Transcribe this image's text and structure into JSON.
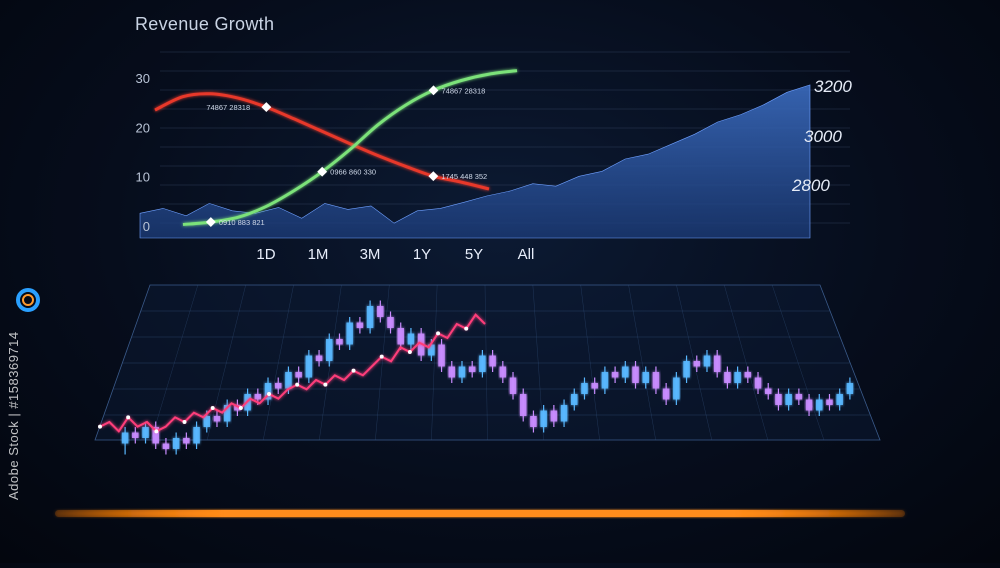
{
  "title": "Revenue Growth",
  "range_buttons": [
    "1D",
    "1M",
    "3M",
    "1Y",
    "5Y",
    "All"
  ],
  "watermark": "Adobe Stock | #158369714",
  "colors": {
    "green_line": "#7be27a",
    "red_line": "#e8392a",
    "area_fill": "#2d5aa6",
    "candle_up": "#59b8ff",
    "candle_down": "#c98cff",
    "pink_line": "#ff3e7a",
    "orange_bar": "#ff8c1a"
  },
  "chart_data": [
    {
      "type": "line",
      "title": "Revenue Growth",
      "ylim": [
        0,
        30
      ],
      "yticks": [
        0,
        10,
        20,
        30
      ],
      "right_ticks": [
        2800,
        3000,
        3200
      ],
      "series": [
        {
          "color": "green",
          "x": [
            0,
            1,
            2,
            3,
            4,
            5,
            6,
            7,
            8,
            9,
            10,
            11,
            12
          ],
          "values": [
            0.3,
            0.8,
            1.8,
            4.0,
            7.2,
            11.0,
            15.5,
            20.5,
            24.5,
            27.5,
            29.5,
            30.8,
            31.5
          ]
        },
        {
          "color": "red",
          "x": [
            0,
            1,
            2,
            3,
            4,
            5,
            6,
            7,
            8,
            9,
            10,
            11,
            12
          ],
          "values": [
            23.5,
            26.2,
            26.8,
            25.9,
            24.1,
            21.7,
            19.2,
            16.7,
            14.3,
            12.1,
            10.1,
            8.9,
            7.5
          ]
        }
      ],
      "annotations": [
        {
          "text": "0910 883 821",
          "series": "green",
          "x": 1
        },
        {
          "text": "0966 860 330",
          "series": "green",
          "x": 5
        },
        {
          "text": "74867 28318",
          "series": "green",
          "x": 9
        },
        {
          "text": "74867 28318",
          "series": "red",
          "x": 4
        },
        {
          "text": "1745 448 352",
          "series": "red",
          "x": 10
        }
      ],
      "area": {
        "values": [
          0.5,
          0.6,
          0.45,
          0.7,
          0.55,
          0.5,
          0.62,
          0.4,
          0.7,
          0.58,
          0.65,
          0.3,
          0.55,
          0.6,
          0.72,
          0.85,
          0.95,
          1.1,
          1.05,
          1.25,
          1.35,
          1.6,
          1.7,
          1.9,
          2.1,
          2.35,
          2.5,
          2.7,
          2.95,
          3.1
        ]
      }
    },
    {
      "type": "candlestick",
      "candles": [
        [
          3,
          5,
          1,
          6
        ],
        [
          5,
          4,
          3,
          6
        ],
        [
          4,
          6,
          3,
          7
        ],
        [
          6,
          3,
          2,
          7
        ],
        [
          3,
          2,
          1,
          4
        ],
        [
          2,
          4,
          1,
          5
        ],
        [
          4,
          3,
          2,
          5
        ],
        [
          3,
          6,
          2,
          7
        ],
        [
          6,
          8,
          5,
          9
        ],
        [
          8,
          7,
          6,
          9
        ],
        [
          7,
          10,
          6,
          11
        ],
        [
          10,
          9,
          8,
          11
        ],
        [
          9,
          12,
          8,
          13
        ],
        [
          12,
          11,
          10,
          13
        ],
        [
          11,
          14,
          10,
          15
        ],
        [
          14,
          13,
          12,
          15
        ],
        [
          13,
          16,
          12,
          17
        ],
        [
          16,
          15,
          14,
          17
        ],
        [
          15,
          19,
          14,
          20
        ],
        [
          19,
          18,
          17,
          20
        ],
        [
          18,
          22,
          17,
          23
        ],
        [
          22,
          21,
          20,
          23
        ],
        [
          21,
          25,
          20,
          26
        ],
        [
          25,
          24,
          23,
          26
        ],
        [
          24,
          28,
          23,
          29
        ],
        [
          28,
          26,
          25,
          29
        ],
        [
          26,
          24,
          23,
          27
        ],
        [
          24,
          21,
          20,
          25
        ],
        [
          21,
          23,
          20,
          24
        ],
        [
          23,
          19,
          18,
          24
        ],
        [
          19,
          21,
          18,
          22
        ],
        [
          21,
          17,
          16,
          22
        ],
        [
          17,
          15,
          14,
          18
        ],
        [
          15,
          17,
          14,
          18
        ],
        [
          17,
          16,
          15,
          18
        ],
        [
          16,
          19,
          15,
          20
        ],
        [
          19,
          17,
          16,
          20
        ],
        [
          17,
          15,
          14,
          18
        ],
        [
          15,
          12,
          11,
          16
        ],
        [
          12,
          8,
          7,
          13
        ],
        [
          8,
          6,
          5,
          9
        ],
        [
          6,
          9,
          5,
          10
        ],
        [
          9,
          7,
          6,
          10
        ],
        [
          7,
          10,
          6,
          11
        ],
        [
          10,
          12,
          9,
          13
        ],
        [
          12,
          14,
          11,
          15
        ],
        [
          14,
          13,
          12,
          15
        ],
        [
          13,
          16,
          12,
          17
        ],
        [
          16,
          15,
          14,
          17
        ],
        [
          15,
          17,
          14,
          18
        ],
        [
          17,
          14,
          13,
          18
        ],
        [
          14,
          16,
          13,
          17
        ],
        [
          16,
          13,
          12,
          17
        ],
        [
          13,
          11,
          10,
          14
        ],
        [
          11,
          15,
          10,
          16
        ],
        [
          15,
          18,
          14,
          19
        ],
        [
          18,
          17,
          16,
          19
        ],
        [
          17,
          19,
          16,
          20
        ],
        [
          19,
          16,
          15,
          20
        ],
        [
          16,
          14,
          13,
          17
        ],
        [
          14,
          16,
          13,
          17
        ],
        [
          16,
          15,
          14,
          17
        ],
        [
          15,
          13,
          12,
          16
        ],
        [
          13,
          12,
          11,
          14
        ],
        [
          12,
          10,
          9,
          13
        ],
        [
          10,
          12,
          9,
          13
        ],
        [
          12,
          11,
          10,
          13
        ],
        [
          11,
          9,
          8,
          12
        ],
        [
          9,
          11,
          8,
          12
        ],
        [
          11,
          10,
          9,
          12
        ],
        [
          10,
          12,
          9,
          13
        ],
        [
          12,
          14,
          11,
          15
        ]
      ],
      "pink_line": [
        5,
        6,
        4,
        7,
        5,
        6,
        4,
        5,
        7,
        6,
        8,
        7,
        9,
        8,
        10,
        9,
        11,
        10,
        12,
        11,
        13,
        14,
        13,
        15,
        14,
        16,
        15,
        17,
        16,
        18,
        20,
        19,
        22,
        21,
        23,
        22,
        25,
        24,
        27,
        26,
        29,
        27
      ]
    }
  ]
}
